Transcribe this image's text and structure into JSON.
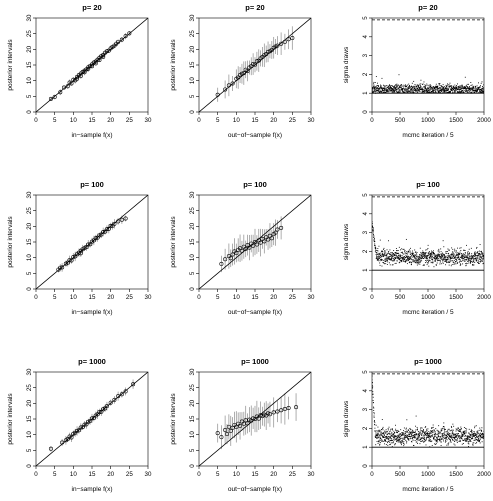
{
  "colors": {
    "points": "#000000",
    "intervals": "#9a9a9a",
    "axes": "#000000"
  },
  "chart_data": [
    {
      "id": "in20",
      "type": "scatter",
      "title": "p= 20",
      "xlabel": "in−sample f(x)",
      "ylabel": "posterior intervals",
      "xlim": [
        0,
        30
      ],
      "ylim": [
        0,
        30
      ],
      "xticks": [
        0,
        5,
        10,
        15,
        20,
        25,
        30
      ],
      "yticks": [
        0,
        5,
        10,
        15,
        20,
        25,
        30
      ],
      "reference_line": "y = x",
      "interval_half_width": 0.8,
      "x": [
        4,
        5,
        6.5,
        7.5,
        8.5,
        9,
        9.5,
        10,
        10.5,
        11,
        11,
        11.5,
        12,
        12,
        12.5,
        13,
        13,
        13.5,
        14,
        14,
        14.5,
        15,
        15,
        15.5,
        16,
        16,
        16.5,
        17,
        17,
        17.5,
        18,
        18,
        18.5,
        19,
        19.5,
        20,
        20.5,
        21,
        21.5,
        22,
        23,
        24,
        25
      ],
      "y": [
        4.2,
        4.8,
        6.3,
        7.8,
        8.2,
        9.4,
        9.1,
        10.3,
        10.1,
        11.2,
        10.6,
        11.8,
        12.3,
        11.5,
        12.8,
        13.2,
        12.7,
        13.6,
        14.3,
        13.8,
        14.7,
        15.2,
        14.6,
        15.8,
        16.1,
        15.5,
        16.7,
        17.3,
        16.6,
        17.8,
        18.2,
        17.6,
        18.9,
        19.4,
        19.6,
        20.3,
        20.8,
        21.2,
        21.8,
        22.4,
        23.1,
        24.2,
        25.1
      ]
    },
    {
      "id": "out20",
      "type": "scatter",
      "title": "p= 20",
      "xlabel": "out−of−sample f(x)",
      "ylabel": "posterior intervals",
      "xlim": [
        0,
        30
      ],
      "ylim": [
        0,
        30
      ],
      "xticks": [
        0,
        5,
        10,
        15,
        20,
        25,
        30
      ],
      "yticks": [
        0,
        5,
        10,
        15,
        20,
        25,
        30
      ],
      "reference_line": "y = x",
      "interval_half_width": 3,
      "x": [
        5,
        7,
        8,
        9,
        10,
        10.5,
        11,
        11.5,
        12,
        12.5,
        13,
        13.5,
        14,
        14.5,
        15,
        15.5,
        16,
        16.5,
        17,
        17.5,
        18,
        18.5,
        19,
        19.5,
        20,
        20.5,
        21,
        22,
        23,
        24,
        25
      ],
      "y": [
        5.5,
        7.2,
        8.5,
        9.1,
        10.6,
        11,
        11.8,
        12.2,
        12.4,
        13.5,
        13.1,
        14.2,
        14.6,
        15.3,
        15.1,
        16.2,
        16.4,
        17.1,
        17.6,
        18.1,
        18.5,
        19.2,
        19.4,
        19.8,
        20.5,
        20.9,
        21.2,
        21.8,
        22.4,
        23.2,
        23.6
      ]
    },
    {
      "id": "sig20",
      "type": "scatter",
      "title": "p= 20",
      "xlabel": "mcmc iteration / 5",
      "ylabel": "sigma draws",
      "xlim": [
        0,
        2000
      ],
      "ylim": [
        0,
        5
      ],
      "xticks": [
        0,
        500,
        1000,
        1500,
        2000
      ],
      "yticks": [
        0,
        1,
        2,
        3,
        4,
        5
      ],
      "true_value": 1,
      "dashed_line": 4.9,
      "n_draws": 2000,
      "center": 1.2,
      "spread": 0.2,
      "burn_in": 0,
      "spike": 0
    },
    {
      "id": "in100",
      "type": "scatter",
      "title": "p= 100",
      "xlabel": "in−sample f(x)",
      "ylabel": "posterior intervals",
      "xlim": [
        0,
        30
      ],
      "ylim": [
        0,
        30
      ],
      "xticks": [
        0,
        5,
        10,
        15,
        20,
        25,
        30
      ],
      "yticks": [
        0,
        5,
        10,
        15,
        20,
        25,
        30
      ],
      "reference_line": "y = x",
      "interval_half_width": 1.2,
      "x": [
        6,
        6.5,
        7,
        8,
        8.5,
        9,
        9.5,
        10,
        10.5,
        11,
        11.5,
        12,
        12,
        12.5,
        13,
        13.5,
        14,
        14.5,
        15,
        15.5,
        16,
        16.5,
        17,
        17.5,
        18,
        18.5,
        19,
        19.5,
        20,
        20.5,
        21,
        22,
        23,
        24
      ],
      "y": [
        6.2,
        6.8,
        6.9,
        8.1,
        8.4,
        9.2,
        9.1,
        10.2,
        10.4,
        11.1,
        11.6,
        12.2,
        11.4,
        12.7,
        13.1,
        13.4,
        14.2,
        14.3,
        15.1,
        15.5,
        16.2,
        16.4,
        17.1,
        17.4,
        18.2,
        18.3,
        19.1,
        19.2,
        20.1,
        20.2,
        20.8,
        21.6,
        22.1,
        22.5
      ]
    },
    {
      "id": "out100",
      "type": "scatter",
      "title": "p= 100",
      "xlabel": "out−of−sample f(x)",
      "ylabel": "posterior intervals",
      "xlim": [
        0,
        30
      ],
      "ylim": [
        0,
        30
      ],
      "xticks": [
        0,
        5,
        10,
        15,
        20,
        25,
        30
      ],
      "yticks": [
        0,
        5,
        10,
        15,
        20,
        25,
        30
      ],
      "reference_line": "y = x",
      "interval_half_width": 3.5,
      "x": [
        6,
        7,
        8,
        8.5,
        9,
        9.5,
        10,
        10.5,
        11,
        11.5,
        12,
        12.5,
        13,
        13.5,
        14,
        14.5,
        15,
        15.5,
        16,
        16.5,
        17,
        17.5,
        18,
        18.5,
        19,
        19.5,
        20,
        20.5,
        21,
        22
      ],
      "y": [
        8,
        9.5,
        10.5,
        9.8,
        11,
        12,
        11.5,
        12.5,
        13,
        12.2,
        13.5,
        12.8,
        14,
        13.2,
        14.5,
        13.8,
        15,
        14.2,
        15.5,
        14.8,
        16,
        15.2,
        16.5,
        15.8,
        17,
        16.2,
        17.5,
        18,
        19,
        19.5
      ]
    },
    {
      "id": "sig100",
      "type": "scatter",
      "title": "p= 100",
      "xlabel": "mcmc iteration / 5",
      "ylabel": "sigma draws",
      "xlim": [
        0,
        2000
      ],
      "ylim": [
        0,
        5
      ],
      "xticks": [
        0,
        500,
        1000,
        1500,
        2000
      ],
      "yticks": [
        0,
        1,
        2,
        3,
        4,
        5
      ],
      "true_value": 1,
      "dashed_line": 4.9,
      "n_draws": 2000,
      "center": 1.7,
      "spread": 0.28,
      "burn_in": 80,
      "spike": 3.6
    },
    {
      "id": "in1000",
      "type": "scatter",
      "title": "p= 1000",
      "xlabel": "in−sample f(x)",
      "ylabel": "posterior intervals",
      "xlim": [
        0,
        30
      ],
      "ylim": [
        0,
        30
      ],
      "xticks": [
        0,
        5,
        10,
        15,
        20,
        25,
        30
      ],
      "yticks": [
        0,
        5,
        10,
        15,
        20,
        25,
        30
      ],
      "reference_line": "y = x",
      "interval_half_width": 1.2,
      "x": [
        4,
        7,
        8,
        8.5,
        9,
        9.5,
        10,
        10.5,
        11,
        11.5,
        12,
        12.5,
        13,
        13.5,
        14,
        14.5,
        15,
        15.5,
        16,
        16.5,
        17,
        17.5,
        18,
        18.5,
        19,
        20,
        21,
        22,
        23,
        24,
        26
      ],
      "y": [
        5.5,
        7.5,
        8.2,
        8.6,
        9.4,
        9.1,
        10.3,
        10.6,
        11.2,
        11.4,
        12.3,
        12.4,
        13.2,
        13.3,
        14.1,
        14.4,
        15.2,
        15.3,
        16.1,
        16.5,
        17.2,
        17.3,
        18.1,
        18.4,
        19.1,
        20.2,
        21.1,
        22.3,
        22.9,
        23.8,
        26.1
      ]
    },
    {
      "id": "out1000",
      "type": "scatter",
      "title": "p= 1000",
      "xlabel": "out−of−sample f(x)",
      "ylabel": "posterior intervals",
      "xlim": [
        0,
        30
      ],
      "ylim": [
        0,
        30
      ],
      "xticks": [
        0,
        5,
        10,
        15,
        20,
        25,
        30
      ],
      "yticks": [
        0,
        5,
        10,
        15,
        20,
        25,
        30
      ],
      "reference_line": "y = x",
      "interval_half_width": 4,
      "x": [
        5,
        6,
        7,
        7.5,
        8,
        8.5,
        9,
        9.5,
        10,
        10.5,
        11,
        11.5,
        12,
        12.5,
        13,
        13.5,
        14,
        14.5,
        15,
        15.5,
        16,
        16.5,
        17,
        17.5,
        18,
        18.5,
        19,
        20,
        21,
        22,
        23,
        24,
        26
      ],
      "y": [
        10.5,
        9.2,
        11.5,
        10.2,
        12.5,
        11.2,
        12.2,
        13.1,
        12.5,
        13.5,
        12.8,
        14.2,
        13.5,
        14.6,
        13.6,
        14.8,
        14.5,
        15.2,
        15,
        15.8,
        15.1,
        16.2,
        15.9,
        16.4,
        16.1,
        16.8,
        16.5,
        17.1,
        17.4,
        17.8,
        18.2,
        18.5,
        18.8
      ]
    },
    {
      "id": "sig1000",
      "type": "scatter",
      "title": "p= 1000",
      "xlabel": "mcmc iteration / 5",
      "ylabel": "sigma draws",
      "xlim": [
        0,
        2000
      ],
      "ylim": [
        0,
        5
      ],
      "xticks": [
        0,
        500,
        1000,
        1500,
        2000
      ],
      "yticks": [
        0,
        1,
        2,
        3,
        4,
        5
      ],
      "true_value": 1,
      "dashed_line": 4.9,
      "n_draws": 2000,
      "center": 1.6,
      "spread": 0.3,
      "burn_in": 60,
      "spike": 4.7
    }
  ]
}
